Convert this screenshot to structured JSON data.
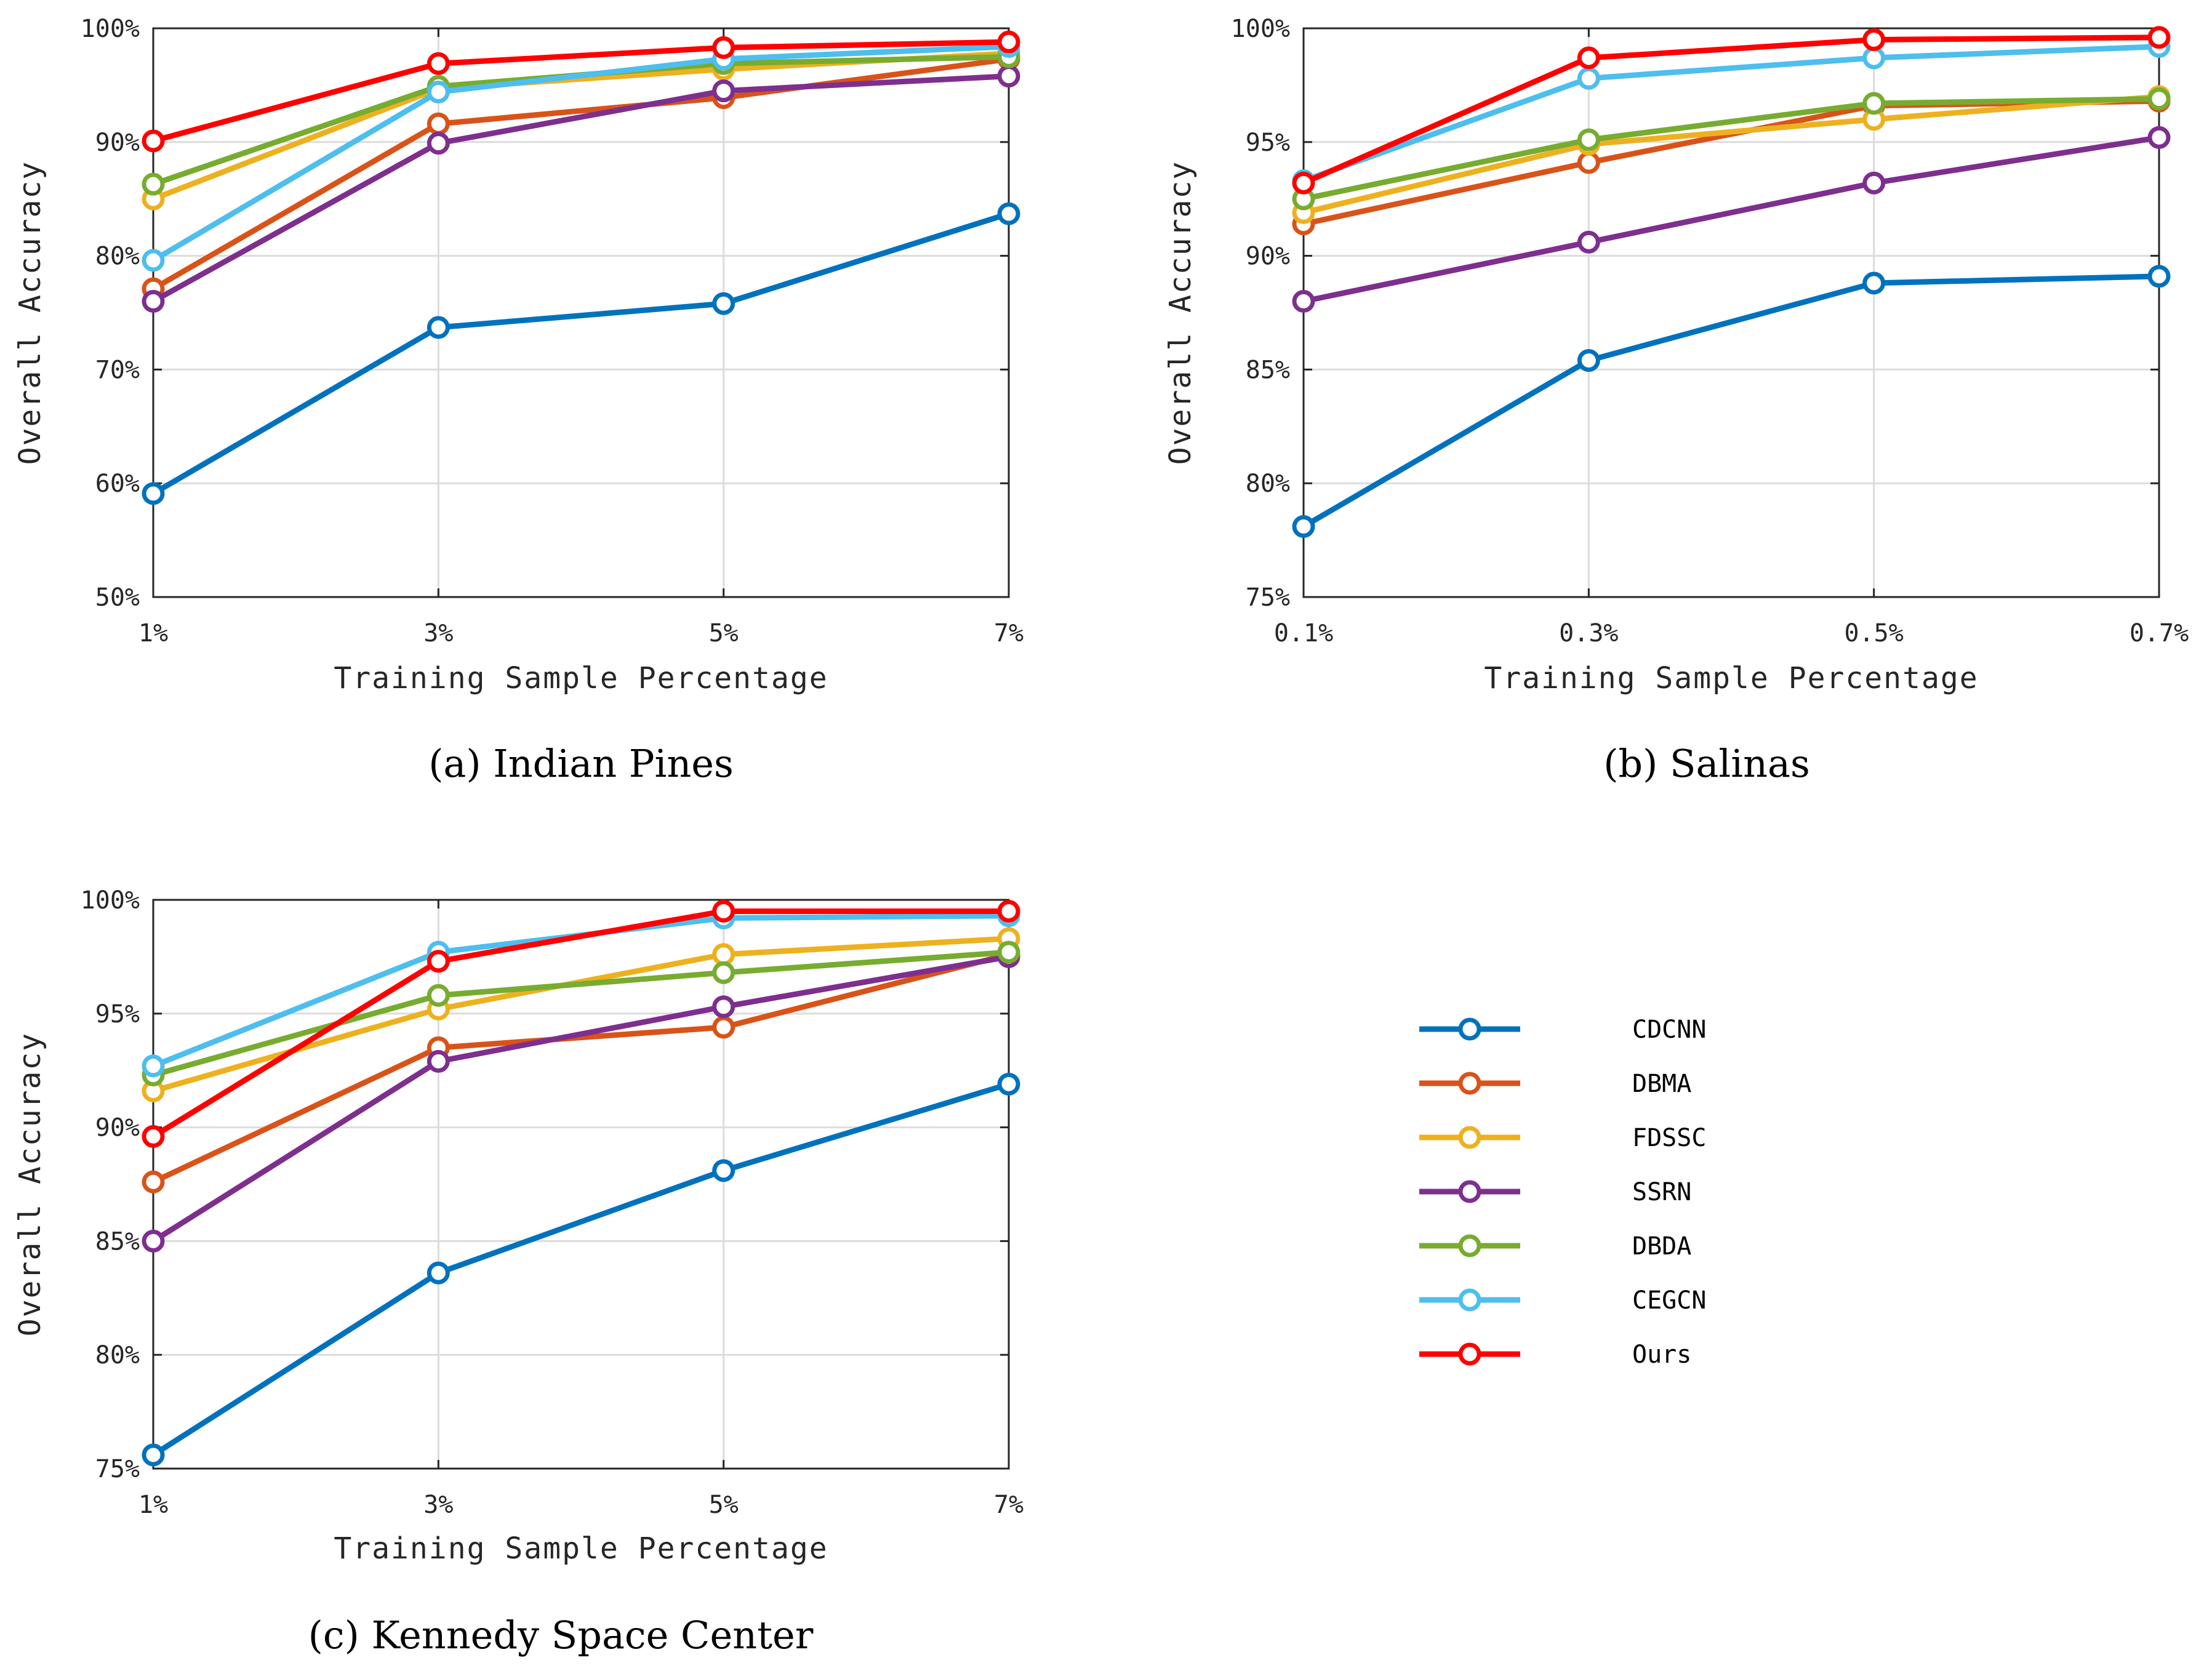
{
  "legend": {
    "entries": [
      "CDCNN",
      "DBMA",
      "FDSSC",
      "SSRN",
      "DBDA",
      "CEGCN",
      "Ours"
    ]
  },
  "colors": {
    "CDCNN": "#0072BD",
    "DBMA": "#D95319",
    "FDSSC": "#EDB120",
    "SSRN": "#7E2F8E",
    "DBDA": "#77AC30",
    "CEGCN": "#4DBEEE",
    "Ours": "#FF0000"
  },
  "chart_data": [
    {
      "type": "line",
      "caption": "(a)  Indian Pines",
      "xlabel": "Training Sample Percentage",
      "ylabel": "Overall Accuracy",
      "x": [
        1,
        3,
        5,
        7
      ],
      "xticks": [
        "1%",
        "3%",
        "5%",
        "7%"
      ],
      "yticks": [
        "50%",
        "60%",
        "70%",
        "80%",
        "90%",
        "100%"
      ],
      "ylim": [
        50,
        100
      ],
      "grid": true,
      "series": [
        {
          "name": "CDCNN",
          "values": [
            59.1,
            73.7,
            75.8,
            83.7
          ]
        },
        {
          "name": "DBMA",
          "values": [
            77.1,
            91.6,
            93.9,
            97.3
          ]
        },
        {
          "name": "FDSSC",
          "values": [
            85.0,
            94.7,
            96.4,
            97.8
          ]
        },
        {
          "name": "SSRN",
          "values": [
            76.0,
            89.9,
            94.5,
            95.8
          ]
        },
        {
          "name": "DBDA",
          "values": [
            86.3,
            94.9,
            96.9,
            97.5
          ]
        },
        {
          "name": "CEGCN",
          "values": [
            79.6,
            94.4,
            97.3,
            98.4
          ]
        },
        {
          "name": "Ours",
          "values": [
            90.1,
            96.9,
            98.3,
            98.8
          ]
        }
      ]
    },
    {
      "type": "line",
      "caption": "(b) Salinas",
      "xlabel": "Training Sample Percentage",
      "ylabel": "Overall Accuracy",
      "x": [
        0.1,
        0.3,
        0.5,
        0.7
      ],
      "xticks": [
        "0.1%",
        "0.3%",
        "0.5%",
        "0.7%"
      ],
      "yticks": [
        "75%",
        "80%",
        "85%",
        "90%",
        "95%",
        "100%"
      ],
      "ylim": [
        75,
        100
      ],
      "grid": true,
      "series": [
        {
          "name": "CDCNN",
          "values": [
            78.1,
            85.4,
            88.8,
            89.1
          ]
        },
        {
          "name": "DBMA",
          "values": [
            91.4,
            94.1,
            96.6,
            96.8
          ]
        },
        {
          "name": "FDSSC",
          "values": [
            91.9,
            94.9,
            96.0,
            97.0
          ]
        },
        {
          "name": "SSRN",
          "values": [
            88.0,
            90.6,
            93.2,
            95.2
          ]
        },
        {
          "name": "DBDA",
          "values": [
            92.5,
            95.1,
            96.7,
            96.9
          ]
        },
        {
          "name": "CEGCN",
          "values": [
            93.3,
            97.8,
            98.7,
            99.2
          ]
        },
        {
          "name": "Ours",
          "values": [
            93.2,
            98.7,
            99.5,
            99.6
          ]
        }
      ]
    },
    {
      "type": "line",
      "caption": "(c)  Kennedy Space Center",
      "xlabel": "Training Sample Percentage",
      "ylabel": "Overall Accuracy",
      "x": [
        1,
        3,
        5,
        7
      ],
      "xticks": [
        "1%",
        "3%",
        "5%",
        "7%"
      ],
      "yticks": [
        "75%",
        "80%",
        "85%",
        "90%",
        "95%",
        "100%"
      ],
      "ylim": [
        75,
        100
      ],
      "grid": true,
      "series": [
        {
          "name": "CDCNN",
          "values": [
            75.6,
            83.6,
            88.1,
            91.9
          ]
        },
        {
          "name": "DBMA",
          "values": [
            87.6,
            93.5,
            94.4,
            97.6
          ]
        },
        {
          "name": "FDSSC",
          "values": [
            91.6,
            95.2,
            97.6,
            98.3
          ]
        },
        {
          "name": "SSRN",
          "values": [
            85.0,
            92.9,
            95.3,
            97.5
          ]
        },
        {
          "name": "DBDA",
          "values": [
            92.3,
            95.8,
            96.8,
            97.7
          ]
        },
        {
          "name": "CEGCN",
          "values": [
            92.7,
            97.7,
            99.2,
            99.3
          ]
        },
        {
          "name": "Ours",
          "values": [
            89.6,
            97.3,
            99.5,
            99.5
          ]
        }
      ]
    }
  ]
}
